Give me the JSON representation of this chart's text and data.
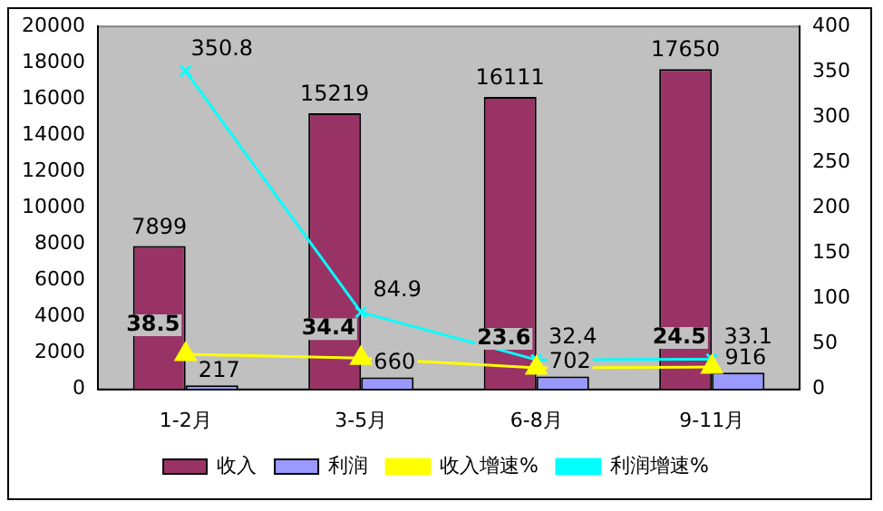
{
  "chart_data": {
    "type": "bar",
    "categories": [
      "1-2月",
      "3-5月",
      "6-8月",
      "9-11月"
    ],
    "series": [
      {
        "name": "收入",
        "color": "#993366",
        "values": [
          7899,
          15219,
          16111,
          17650
        ]
      },
      {
        "name": "利润",
        "color": "#9999ff",
        "values": [
          217,
          660,
          702,
          916
        ]
      },
      {
        "name": "收入增速%",
        "type": "line",
        "axis": "y2",
        "color": "#ffff00",
        "marker": "triangle",
        "values": [
          38.5,
          34.4,
          23.6,
          24.5
        ]
      },
      {
        "name": "利润增速%",
        "type": "line",
        "axis": "y2",
        "color": "#00ffff",
        "marker": "cross",
        "values": [
          350.8,
          84.9,
          32.4,
          33.1
        ]
      }
    ],
    "ylim": [
      0,
      20000
    ],
    "yticks": [
      0,
      2000,
      4000,
      6000,
      8000,
      10000,
      12000,
      14000,
      16000,
      18000,
      20000
    ],
    "y2lim": [
      0,
      400
    ],
    "y2ticks": [
      0,
      50,
      100,
      150,
      200,
      250,
      300,
      350,
      400
    ],
    "data_labels": true,
    "grid": false,
    "legend": "bottom"
  }
}
